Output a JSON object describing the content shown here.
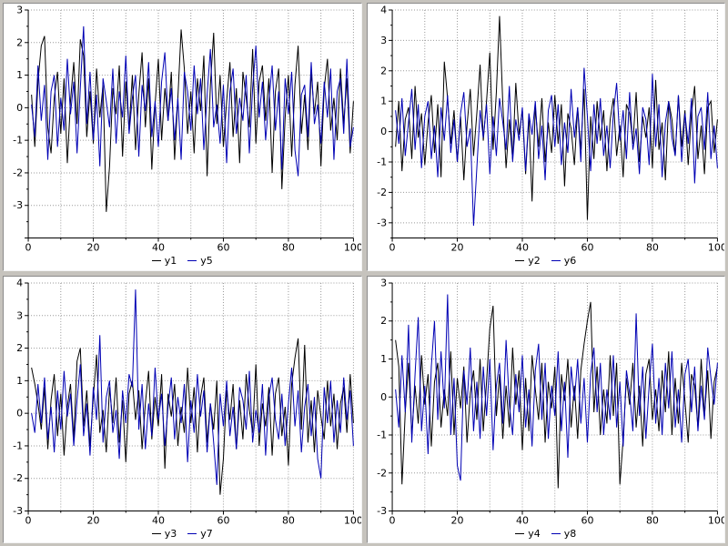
{
  "window": {
    "background": "#c6c3bd"
  },
  "colors": {
    "axis": "#000000",
    "grid": "#999999",
    "panel_background": "#ffffff",
    "series_black": "#000000",
    "series_blue": "#0000b4"
  },
  "chart_data": [
    {
      "type": "line",
      "position": "top-left",
      "xlim": [
        0,
        100
      ],
      "ylim": [
        -4,
        3
      ],
      "xticks": [
        0,
        20,
        40,
        60,
        80,
        100
      ],
      "yticks": [
        3,
        2,
        1,
        0,
        -1,
        -2,
        -3
      ],
      "grid": true,
      "legend_position": "bottom",
      "series": [
        {
          "name": "y1",
          "color": "#000000",
          "values": [
            0.4,
            -1.2,
            0.8,
            1.9,
            2.2,
            -0.6,
            -1.4,
            0.3,
            1.1,
            -0.8,
            0.9,
            -1.7,
            0.2,
            1.4,
            -0.5,
            2.1,
            1.6,
            -0.9,
            0.5,
            -1.1,
            1.2,
            -0.3,
            0.7,
            -3.2,
            -1.8,
            0.6,
            -0.2,
            1.3,
            -1.5,
            0.8,
            -0.7,
            1.0,
            -1.3,
            0.4,
            1.7,
            -0.6,
            0.9,
            -1.9,
            0.1,
            1.5,
            -1.0,
            0.6,
            -0.4,
            1.1,
            -1.6,
            0.3,
            2.4,
            1.2,
            -0.8,
            0.5,
            -1.4,
            0.9,
            -0.1,
            1.6,
            -2.1,
            0.7,
            2.3,
            -0.5,
            1.0,
            -1.2,
            0.2,
            1.4,
            -0.9,
            0.6,
            -1.7,
            1.1,
            0.3,
            -0.6,
            1.8,
            -1.1,
            0.8,
            1.3,
            -0.4,
            0.9,
            -2.0,
            0.5,
            1.2,
            -2.5,
            -0.3,
            1.0,
            -1.5,
            0.7,
            1.9,
            -0.8,
            0.4,
            -1.3,
            1.1,
            -0.2,
            0.8,
            -1.8,
            0.6,
            1.5,
            -0.7,
            0.3,
            -1.0,
            1.2,
            -0.5,
            0.9,
            -1.4,
            0.2
          ]
        },
        {
          "name": "y5",
          "color": "#0000b4",
          "values": [
            0.1,
            -0.9,
            1.3,
            -0.4,
            0.7,
            -1.6,
            0.5,
            1.0,
            -1.2,
            0.3,
            -0.7,
            1.5,
            -0.2,
            0.8,
            -1.4,
            0.6,
            2.5,
            -0.5,
            1.1,
            -1.0,
            0.4,
            -1.8,
            0.9,
            0.2,
            -0.6,
            1.2,
            -1.1,
            0.5,
            -0.3,
            1.6,
            -0.8,
            0.3,
            1.0,
            -1.5,
            0.7,
            -0.1,
            1.4,
            -0.9,
            0.2,
            -1.2,
            0.8,
            1.7,
            -0.4,
            0.6,
            -1.0,
            0.3,
            -1.6,
            1.1,
            0.5,
            -0.7,
            1.3,
            -0.2,
            0.9,
            -1.3,
            0.4,
            1.8,
            -0.6,
            0.1,
            -1.1,
            0.7,
            -1.7,
            0.5,
            1.2,
            -0.8,
            0.3,
            -0.4,
            1.0,
            -1.4,
            0.6,
            1.9,
            -0.3,
            0.8,
            -1.0,
            0.2,
            1.3,
            -0.7,
            0.5,
            -1.9,
            0.9,
            -0.2,
            1.1,
            -1.3,
            -2.1,
            0.4,
            0.7,
            -0.9,
            1.4,
            -0.5,
            0.1,
            -1.1,
            0.8,
            -0.3,
            1.2,
            -1.6,
            0.5,
            0.9,
            -0.8,
            1.5,
            -1.2,
            -0.6
          ]
        }
      ]
    },
    {
      "type": "line",
      "position": "top-right",
      "xlim": [
        0,
        100
      ],
      "ylim": [
        -3.5,
        4
      ],
      "xticks": [
        0,
        20,
        40,
        60,
        80,
        100
      ],
      "yticks": [
        4,
        3,
        2,
        1,
        0,
        -1,
        -2,
        -3
      ],
      "grid": true,
      "legend_position": "bottom",
      "series": [
        {
          "name": "y2",
          "color": "#000000",
          "values": [
            -0.5,
            1.0,
            -1.3,
            0.4,
            0.8,
            -0.9,
            1.5,
            -0.2,
            0.6,
            -1.1,
            0.3,
            1.2,
            -0.7,
            0.9,
            -1.5,
            2.3,
            1.1,
            -0.4,
            0.7,
            -1.0,
            0.5,
            -1.6,
            0.2,
            1.4,
            -0.8,
            0.6,
            2.2,
            -0.3,
            1.0,
            2.6,
            -0.6,
            1.3,
            3.8,
            0.9,
            -1.2,
            0.4,
            -0.9,
            1.6,
            -0.1,
            0.7,
            -1.4,
            0.5,
            -2.3,
            0.8,
            -0.5,
            1.1,
            -1.0,
            0.3,
            -0.7,
            1.2,
            -0.4,
            0.9,
            -1.8,
            0.6,
            0.1,
            -1.1,
            0.8,
            -0.6,
            1.4,
            -2.9,
            0.5,
            -0.9,
            1.0,
            -0.3,
            0.7,
            -1.3,
            0.4,
            1.1,
            -0.8,
            0.2,
            -1.5,
            0.9,
            0.6,
            -0.4,
            1.3,
            -1.0,
            0.5,
            -0.2,
            0.8,
            -1.2,
            1.7,
            -0.6,
            0.3,
            -1.6,
            1.0,
            0.4,
            -0.8,
            1.2,
            -0.5,
            0.7,
            -1.1,
            0.6,
            1.5,
            -0.9,
            0.2,
            -1.4,
            0.8,
            1.0,
            -0.7,
            0.4
          ]
        },
        {
          "name": "y6",
          "color": "#0000b4",
          "values": [
            0.7,
            -0.4,
            1.1,
            -0.8,
            0.3,
            1.4,
            -0.6,
            0.9,
            -1.2,
            0.5,
            1.0,
            -0.9,
            0.2,
            -1.5,
            0.8,
            -0.3,
            1.2,
            -0.7,
            0.4,
            -1.0,
            0.6,
            1.3,
            -0.5,
            0.1,
            -3.1,
            -1.2,
            0.7,
            -0.2,
            0.9,
            -1.4,
            0.5,
            -0.8,
            1.1,
            0.3,
            -0.6,
            1.5,
            -1.0,
            0.4,
            -0.3,
            0.8,
            -1.3,
            0.6,
            -0.1,
            1.0,
            -0.9,
            0.2,
            -1.6,
            0.7,
            1.2,
            -0.5,
            0.9,
            -1.1,
            0.3,
            -0.7,
            1.4,
            -0.2,
            0.8,
            -1.0,
            2.1,
            0.5,
            -1.3,
            0.9,
            -0.4,
            1.1,
            -0.8,
            0.2,
            -1.2,
            0.6,
            1.6,
            -0.3,
            0.7,
            -0.9,
            1.3,
            -0.6,
            0.1,
            -1.4,
            0.8,
            0.4,
            -1.1,
            1.9,
            -0.5,
            0.9,
            -1.5,
            0.3,
            1.0,
            -0.2,
            -0.8,
            1.2,
            -1.0,
            0.6,
            -0.4,
            1.1,
            -1.7,
            0.5,
            0.8,
            -0.6,
            1.3,
            -0.9,
            0.2,
            -1.2
          ]
        }
      ]
    },
    {
      "type": "line",
      "position": "bottom-left",
      "xlim": [
        0,
        100
      ],
      "ylim": [
        -3,
        4
      ],
      "xticks": [
        0,
        20,
        40,
        60,
        80,
        100
      ],
      "yticks": [
        4,
        3,
        2,
        1,
        0,
        -1,
        -2,
        -3
      ],
      "grid": true,
      "legend_position": "bottom",
      "series": [
        {
          "name": "y3",
          "color": "#000000",
          "values": [
            1.4,
            0.9,
            0.3,
            -0.5,
            0.8,
            -1.1,
            0.4,
            1.2,
            -0.7,
            0.6,
            -1.3,
            0.2,
            0.9,
            -0.8,
            1.6,
            2.0,
            -0.4,
            0.7,
            -1.0,
            0.5,
            1.8,
            -0.6,
            0.1,
            -1.2,
            0.8,
            -0.3,
            1.1,
            -0.9,
            0.4,
            -1.5,
            0.6,
            1.0,
            -0.2,
            0.7,
            -1.1,
            0.3,
            1.3,
            -0.8,
            0.5,
            -0.4,
            1.2,
            -1.7,
            0.6,
            -0.1,
            0.9,
            -1.0,
            0.2,
            -0.6,
            1.4,
            -0.3,
            0.8,
            -1.2,
            0.5,
            1.1,
            -0.9,
            0.3,
            -0.5,
            1.0,
            -2.5,
            -1.4,
            0.7,
            -0.2,
            0.9,
            -1.1,
            0.4,
            -0.8,
            1.2,
            0.1,
            -0.6,
            1.5,
            -1.0,
            0.3,
            -0.4,
            0.8,
            -1.3,
            0.6,
            1.1,
            -0.7,
            0.2,
            -1.6,
            0.9,
            1.7,
            2.3,
            -0.5,
            2.1,
            -0.9,
            0.4,
            -1.2,
            0.7,
            -0.1,
            -0.8,
            1.0,
            -0.4,
            0.6,
            -1.1,
            0.3,
            0.8,
            -0.6,
            1.2,
            -0.3
          ]
        },
        {
          "name": "y7",
          "color": "#0000b4",
          "values": [
            0.0,
            -0.6,
            0.9,
            -0.3,
            1.1,
            -0.8,
            0.2,
            -1.2,
            0.7,
            -0.5,
            1.3,
            -0.1,
            0.6,
            -1.0,
            0.4,
            1.5,
            -0.7,
            0.3,
            -1.3,
            0.8,
            -0.2,
            2.4,
            -0.9,
            0.5,
            1.0,
            -0.6,
            0.1,
            -1.4,
            0.7,
            -0.3,
            1.2,
            0.8,
            3.8,
            -0.5,
            0.9,
            -1.1,
            0.3,
            -0.7,
            1.4,
            -0.2,
            0.6,
            -1.0,
            0.2,
            1.1,
            -0.8,
            0.5,
            -0.3,
            0.9,
            -1.5,
            0.4,
            -0.6,
            1.2,
            -0.1,
            0.7,
            -1.2,
            0.3,
            -0.9,
            -2.2,
            0.6,
            -0.4,
            1.0,
            -0.7,
            0.2,
            -1.1,
            0.8,
            0.4,
            -0.5,
            1.3,
            -0.9,
            0.1,
            -0.6,
            0.9,
            -1.3,
            0.5,
            1.1,
            -0.2,
            -0.8,
            0.6,
            -1.0,
            0.3,
            1.4,
            -0.4,
            0.7,
            -1.2,
            0.2,
            0.9,
            -0.7,
            0.5,
            -1.4,
            -2.0,
            0.8,
            -0.3,
            1.0,
            -0.9,
            0.4,
            -0.6,
            1.1,
            -0.2,
            0.7,
            -1.0
          ]
        }
      ]
    },
    {
      "type": "line",
      "position": "bottom-right",
      "xlim": [
        0,
        100
      ],
      "ylim": [
        -3,
        3
      ],
      "xticks": [
        0,
        20,
        40,
        60,
        80,
        100
      ],
      "yticks": [
        3,
        2,
        1,
        0,
        -1,
        -2,
        -3
      ],
      "grid": true,
      "legend_position": "bottom",
      "series": [
        {
          "name": "y4",
          "color": "#000000",
          "values": [
            1.5,
            0.8,
            -2.3,
            -0.4,
            0.9,
            -1.0,
            0.3,
            -0.7,
            1.1,
            -0.2,
            0.6,
            -1.3,
            0.4,
            0.9,
            -0.8,
            0.2,
            -0.5,
            1.2,
            -1.0,
            0.5,
            -0.3,
            0.8,
            -1.2,
            0.1,
            0.7,
            -0.6,
            1.0,
            -0.9,
            0.4,
            1.8,
            2.4,
            -0.5,
            0.6,
            -1.1,
            0.3,
            -0.8,
            1.3,
            -0.2,
            0.7,
            -1.4,
            0.5,
            -0.9,
            1.1,
            0.2,
            -0.6,
            0.9,
            -1.2,
            0.4,
            -0.3,
            0.8,
            -2.4,
            0.6,
            -0.1,
            1.0,
            -0.8,
            0.3,
            -1.1,
            0.7,
            1.4,
            2.0,
            2.5,
            -0.4,
            0.8,
            -1.0,
            0.2,
            -0.7,
            1.1,
            -0.5,
            0.9,
            -2.3,
            -1.1,
            0.5,
            -0.2,
            0.9,
            -0.8,
            0.3,
            -1.3,
            0.6,
            1.0,
            -0.6,
            0.2,
            -0.9,
            0.7,
            -0.4,
            1.2,
            -1.0,
            0.5,
            -0.7,
            0.9,
            -0.1,
            -1.2,
            0.6,
            0.3,
            -0.8,
            1.0,
            -0.5,
            0.7,
            -1.1,
            0.4,
            0.8
          ]
        },
        {
          "name": "y8",
          "color": "#0000b4",
          "values": [
            0.2,
            -0.8,
            1.1,
            -0.4,
            1.9,
            -1.2,
            0.6,
            2.1,
            -0.9,
            0.3,
            -1.5,
            0.8,
            2.0,
            -0.6,
            1.2,
            -0.3,
            2.7,
            -1.0,
            0.5,
            -1.8,
            -2.2,
            0.7,
            -0.2,
            1.3,
            -0.9,
            0.4,
            -1.1,
            0.8,
            -0.5,
            1.0,
            -1.4,
            0.3,
            0.9,
            -0.7,
            1.5,
            -0.2,
            -1.0,
            0.6,
            -0.4,
            1.1,
            -0.8,
            0.2,
            -1.3,
            0.7,
            1.4,
            -0.6,
            0.9,
            -1.1,
            0.3,
            -0.5,
            1.2,
            -0.9,
            0.4,
            -1.6,
            0.8,
            -0.1,
            1.0,
            -0.7,
            0.5,
            -1.2,
            0.6,
            1.3,
            -0.4,
            0.9,
            -1.0,
            0.2,
            -0.6,
            1.1,
            -0.8,
            0.4,
            -1.3,
            0.7,
            0.1,
            -0.9,
            2.2,
            -0.5,
            0.8,
            -1.1,
            0.3,
            1.4,
            -0.7,
            0.5,
            -1.0,
            0.9,
            -0.3,
            1.2,
            -0.8,
            0.2,
            -1.2,
            0.6,
            1.0,
            -0.4,
            0.8,
            -0.9,
            0.3,
            -0.6,
            1.3,
            0.5,
            -0.2,
            0.9
          ]
        }
      ]
    }
  ]
}
